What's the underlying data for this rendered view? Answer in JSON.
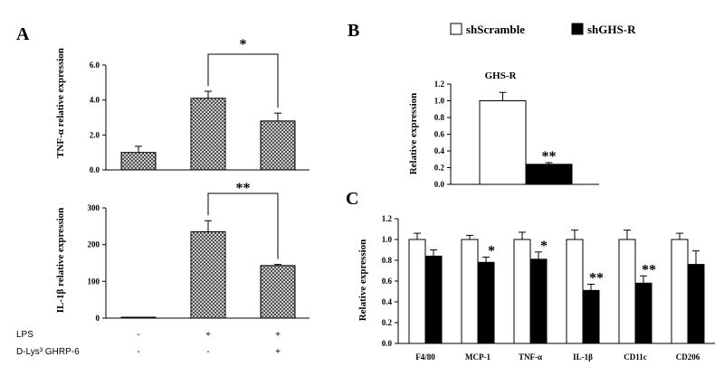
{
  "colors": {
    "black": "#000000",
    "white": "#ffffff",
    "hatch": "#555555"
  },
  "chart_data": [
    {
      "panel": "A",
      "type": "bar",
      "ylabel": "TNF-α relative expression",
      "ylim": [
        0,
        6
      ],
      "yticks": [
        "0.0",
        "2.0",
        "4.0",
        "6.0"
      ],
      "values": [
        1.0,
        4.1,
        2.8
      ],
      "errors": [
        0.35,
        0.4,
        0.45
      ],
      "significance": "*",
      "fill": "hatched"
    },
    {
      "panel": "A",
      "type": "bar",
      "ylabel": "IL-1β relative expression",
      "ylim": [
        0,
        300
      ],
      "yticks": [
        "0",
        "100",
        "200",
        "300"
      ],
      "values": [
        1,
        235,
        143
      ],
      "errors": [
        0,
        30,
        3
      ],
      "significance": "**",
      "fill": "hatched",
      "treatments": [
        {
          "label": "LPS",
          "marks": [
            "-",
            "+",
            "+"
          ]
        },
        {
          "label": "D-Lys³ GHRP-6",
          "marks": [
            "-",
            "-",
            "+"
          ]
        }
      ]
    },
    {
      "panel": "B",
      "type": "bar",
      "title": "GHS-R",
      "ylabel": "Relative expression",
      "ylim": [
        0,
        1.2
      ],
      "yticks": [
        "0.0",
        "0.2",
        "0.4",
        "0.6",
        "0.8",
        "1.0",
        "1.2"
      ],
      "series": [
        {
          "name": "shScramble",
          "values": [
            1.0
          ],
          "errors": [
            0.1
          ]
        },
        {
          "name": "shGHS-R",
          "values": [
            0.24
          ],
          "errors": [
            0.02
          ]
        }
      ],
      "significance": [
        "**"
      ]
    },
    {
      "panel": "C",
      "type": "bar",
      "ylabel": "Relative expression",
      "ylim": [
        0,
        1.2
      ],
      "yticks": [
        "0.0",
        "0.2",
        "0.4",
        "0.6",
        "0.8",
        "1.0",
        "1.2"
      ],
      "categories": [
        "F4/80",
        "MCP-1",
        "TNF-α",
        "IL-1β",
        "CD11c",
        "CD206"
      ],
      "series": [
        {
          "name": "shScramble",
          "values": [
            1.0,
            1.0,
            1.0,
            1.0,
            1.0,
            1.0
          ],
          "errors": [
            0.06,
            0.04,
            0.07,
            0.09,
            0.09,
            0.06
          ]
        },
        {
          "name": "shGHS-R",
          "values": [
            0.84,
            0.78,
            0.81,
            0.51,
            0.58,
            0.76
          ],
          "errors": [
            0.06,
            0.05,
            0.07,
            0.06,
            0.07,
            0.13
          ]
        }
      ],
      "significance": [
        "",
        "*",
        "*",
        "**",
        "**",
        ""
      ]
    }
  ],
  "labels": {
    "panel_a": "A",
    "panel_b": "B",
    "panel_c": "C",
    "legend_1": "shScramble",
    "legend_2": "shGHS-R"
  }
}
